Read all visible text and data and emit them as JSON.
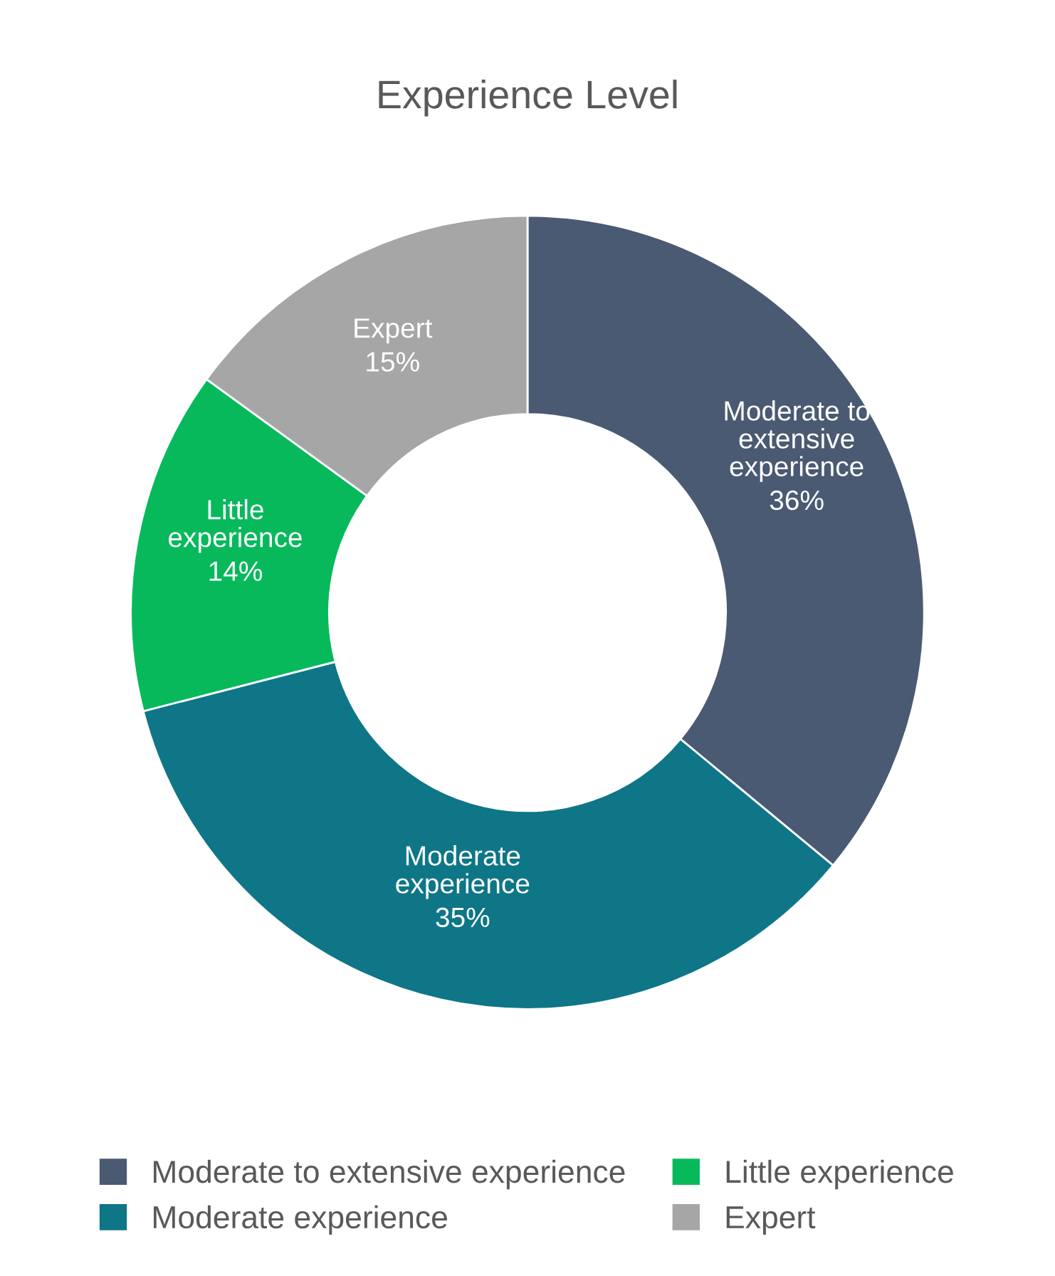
{
  "chart_data": {
    "type": "donut",
    "title": "Experience Level",
    "categories": [
      "Moderate to extensive experience",
      "Moderate experience",
      "Little experience",
      "Expert"
    ],
    "values": [
      36,
      35,
      14,
      15
    ],
    "colors": [
      "#4b5a73",
      "#0e7686",
      "#08b95c",
      "#a6a6a6"
    ],
    "value_labels": [
      "36%",
      "35%",
      "14%",
      "15%"
    ],
    "legend": "bottom"
  }
}
